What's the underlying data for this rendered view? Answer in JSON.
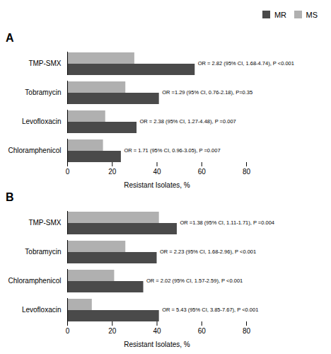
{
  "chart_data": [
    {
      "type": "bar",
      "orientation": "horizontal",
      "title": "A",
      "legend": "upper right",
      "categories": [
        "TMP-SMX",
        "Tobramycin",
        "Levofloxacin",
        "Chloramphenicol"
      ],
      "series": [
        {
          "name": "MR",
          "color": "#4a4a4a",
          "values": [
            57,
            41,
            31,
            24
          ]
        },
        {
          "name": "MS",
          "color": "#b0b0b0",
          "values": [
            30,
            26,
            17,
            16
          ]
        }
      ],
      "annotations": [
        "OR = 2.82 (95% CI, 1.68-4.74), P <0.001",
        "OR =1.29 (95% CI, 0.76-2.18), P=0.35",
        "OR = 2.38 (95% CI, 1.27-4.48), P =0.007",
        "OR = 1.71 (95% CI, 0.96-3.05), P =0.007"
      ],
      "xlabel": "Resistant Isolates, %",
      "xlim": [
        0,
        80
      ],
      "xticks": [
        0,
        20,
        40,
        60,
        80
      ]
    },
    {
      "type": "bar",
      "orientation": "horizontal",
      "title": "B",
      "categories": [
        "TMP-SMX",
        "Tobramycin",
        "Chloramphenicol",
        "Levofloxacin"
      ],
      "series": [
        {
          "name": "MR",
          "color": "#4a4a4a",
          "values": [
            49,
            40,
            34,
            41
          ]
        },
        {
          "name": "MS",
          "color": "#b0b0b0",
          "values": [
            41,
            26,
            21,
            11
          ]
        }
      ],
      "annotations": [
        "OR =1.38 (95% CI, 1.11-1.71), P =0.004",
        "OR = 2.23 (95% CI, 1.68-2.96), P <0.001",
        "OR = 2.02 (95% CI, 1.57-2.59), P <0.001",
        "OR = 5.43 (95% CI, 3.85-7.67), P <0.001"
      ],
      "xlabel": "Resistant Isolates, %",
      "xlim": [
        0,
        80
      ],
      "xticks": [
        0,
        20,
        40,
        60,
        80
      ]
    }
  ]
}
